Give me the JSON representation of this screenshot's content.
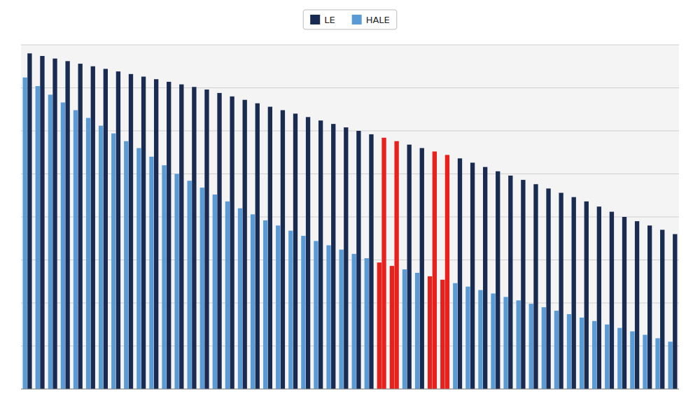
{
  "chart_data": {
    "type": "bar",
    "categories": [
      null,
      null,
      null,
      null,
      null,
      null,
      null,
      null,
      null,
      null,
      null,
      null,
      null,
      null,
      null,
      null,
      null,
      null,
      null,
      null,
      null,
      null,
      null,
      null,
      null,
      null,
      null,
      null,
      null,
      null,
      null,
      null,
      null,
      null,
      null,
      null,
      null,
      null,
      null,
      null,
      null,
      null,
      null,
      null,
      null,
      null,
      null,
      null,
      null,
      null,
      null,
      null
    ],
    "series": [
      {
        "name": "LE",
        "color": "#1a2b52",
        "values": [
          3.9,
          3.87,
          3.84,
          3.81,
          3.78,
          3.75,
          3.72,
          3.69,
          3.66,
          3.63,
          3.6,
          3.57,
          3.54,
          3.51,
          3.48,
          3.44,
          3.4,
          3.36,
          3.32,
          3.28,
          3.24,
          3.2,
          3.16,
          3.12,
          3.08,
          3.04,
          3.0,
          2.96,
          2.92,
          2.88,
          2.84,
          2.8,
          2.76,
          2.72,
          2.68,
          2.63,
          2.58,
          2.53,
          2.48,
          2.43,
          2.38,
          2.33,
          2.28,
          2.23,
          2.18,
          2.12,
          2.06,
          2.0,
          1.95,
          1.9,
          1.85,
          1.8
        ],
        "colors": [
          "#1a2b52",
          "#1a2b52",
          "#1a2b52",
          "#1a2b52",
          "#1a2b52",
          "#1a2b52",
          "#1a2b52",
          "#1a2b52",
          "#1a2b52",
          "#1a2b52",
          "#1a2b52",
          "#1a2b52",
          "#1a2b52",
          "#1a2b52",
          "#1a2b52",
          "#1a2b52",
          "#1a2b52",
          "#1a2b52",
          "#1a2b52",
          "#1a2b52",
          "#1a2b52",
          "#1a2b52",
          "#1a2b52",
          "#1a2b52",
          "#1a2b52",
          "#1a2b52",
          "#1a2b52",
          "#1a2b52",
          "#e8211d",
          "#e8211d",
          "#1a2b52",
          "#1a2b52",
          "#e8211d",
          "#e8211d",
          "#1a2b52",
          "#1a2b52",
          "#1a2b52",
          "#1a2b52",
          "#1a2b52",
          "#1a2b52",
          "#1a2b52",
          "#1a2b52",
          "#1a2b52",
          "#1a2b52",
          "#1a2b52",
          "#1a2b52",
          "#1a2b52",
          "#1a2b52",
          "#1a2b52",
          "#1a2b52",
          "#1a2b52",
          "#1a2b52"
        ]
      },
      {
        "name": "HALE",
        "color": "#5b9bd5",
        "values": [
          3.62,
          3.52,
          3.42,
          3.33,
          3.24,
          3.15,
          3.06,
          2.97,
          2.88,
          2.8,
          2.7,
          2.6,
          2.5,
          2.42,
          2.34,
          2.26,
          2.18,
          2.1,
          2.03,
          1.96,
          1.9,
          1.84,
          1.78,
          1.72,
          1.67,
          1.62,
          1.57,
          1.52,
          1.47,
          1.43,
          1.39,
          1.35,
          1.31,
          1.27,
          1.23,
          1.19,
          1.15,
          1.11,
          1.07,
          1.03,
          0.99,
          0.95,
          0.91,
          0.87,
          0.83,
          0.79,
          0.75,
          0.71,
          0.67,
          0.63,
          0.59,
          0.55
        ],
        "colors": [
          "#5b9bd5",
          "#5b9bd5",
          "#5b9bd5",
          "#5b9bd5",
          "#5b9bd5",
          "#5b9bd5",
          "#5b9bd5",
          "#5b9bd5",
          "#5b9bd5",
          "#5b9bd5",
          "#5b9bd5",
          "#5b9bd5",
          "#5b9bd5",
          "#5b9bd5",
          "#5b9bd5",
          "#5b9bd5",
          "#5b9bd5",
          "#5b9bd5",
          "#5b9bd5",
          "#5b9bd5",
          "#5b9bd5",
          "#5b9bd5",
          "#5b9bd5",
          "#5b9bd5",
          "#5b9bd5",
          "#5b9bd5",
          "#5b9bd5",
          "#5b9bd5",
          "#e8211d",
          "#e8211d",
          "#5b9bd5",
          "#5b9bd5",
          "#e8211d",
          "#e8211d",
          "#5b9bd5",
          "#5b9bd5",
          "#5b9bd5",
          "#5b9bd5",
          "#5b9bd5",
          "#5b9bd5",
          "#5b9bd5",
          "#5b9bd5",
          "#5b9bd5",
          "#5b9bd5",
          "#5b9bd5",
          "#5b9bd5",
          "#5b9bd5",
          "#5b9bd5",
          "#5b9bd5",
          "#5b9bd5",
          "#5b9bd5",
          "#5b9bd5"
        ]
      }
    ],
    "ylim": [
      0.0,
      4.0
    ],
    "yticks": [
      0.0,
      0.5,
      1.0,
      1.5,
      2.0,
      2.5,
      3.0,
      3.5,
      4.0
    ],
    "grid": true,
    "legend": "top",
    "tick_labels": false
  }
}
